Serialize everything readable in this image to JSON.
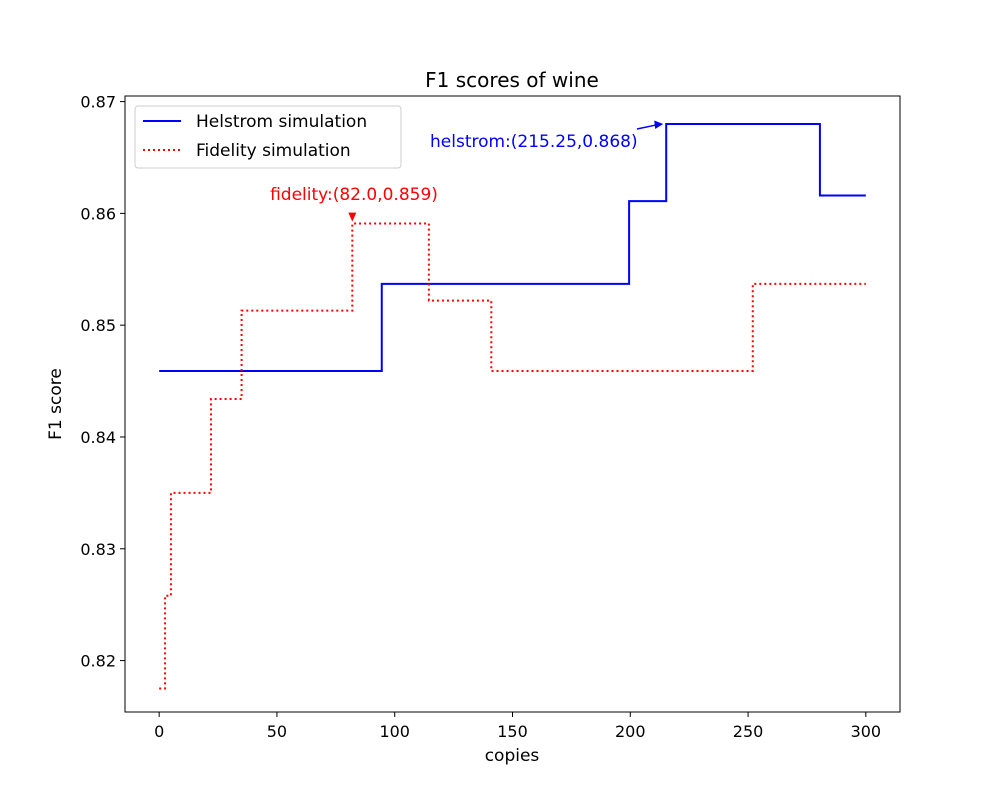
{
  "chart_data": {
    "type": "line",
    "title": "F1 scores of wine",
    "xlabel": "copies",
    "ylabel": "F1 score",
    "xlim": [
      -14.5,
      314.5
    ],
    "ylim": [
      0.8154,
      0.8705
    ],
    "xticks": [
      0,
      50,
      100,
      150,
      200,
      250,
      300
    ],
    "xtick_labels": [
      "0",
      "50",
      "100",
      "150",
      "200",
      "250",
      "300"
    ],
    "yticks": [
      0.82,
      0.83,
      0.84,
      0.85,
      0.86,
      0.87
    ],
    "ytick_labels": [
      "0.82",
      "0.83",
      "0.84",
      "0.85",
      "0.86",
      "0.87"
    ],
    "grid": false,
    "legend_position": "top-left",
    "series": [
      {
        "name": "Helstrom simulation",
        "color": "#0000ff",
        "style": "solid",
        "step": "post",
        "x": [
          0,
          94.5,
          199.5,
          215.25,
          280.5,
          300
        ],
        "y": [
          0.8459,
          0.8537,
          0.8611,
          0.868,
          0.8616,
          0.8616
        ]
      },
      {
        "name": "Fidelity simulation",
        "color": "#ff0000",
        "style": "dotted",
        "step": "post",
        "x": [
          0,
          2.5,
          5,
          22,
          35,
          82,
          114.5,
          141,
          252,
          300
        ],
        "y": [
          0.8175,
          0.8258,
          0.835,
          0.8434,
          0.8513,
          0.8591,
          0.8522,
          0.8459,
          0.8537,
          0.8537
        ]
      }
    ],
    "annotations": [
      {
        "text": "helstrom:(215.25,0.868)",
        "color": "#0000ff",
        "x": 215.25,
        "y": 0.868
      },
      {
        "text": "fidelity:(82.0,0.859)",
        "color": "#ff0000",
        "x": 82.0,
        "y": 0.859
      }
    ]
  }
}
